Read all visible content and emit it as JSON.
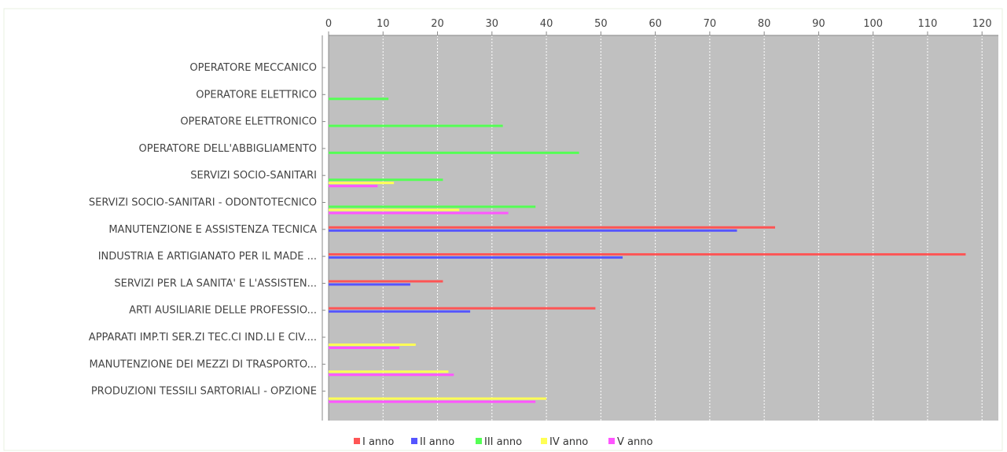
{
  "chart_data": {
    "type": "bar",
    "orientation": "horizontal",
    "title": "",
    "xlabel": "",
    "ylabel": "",
    "xlim": [
      0,
      123
    ],
    "x_ticks": [
      0,
      10,
      20,
      30,
      40,
      50,
      60,
      70,
      80,
      90,
      100,
      110,
      120
    ],
    "axis_position": "top",
    "grid": true,
    "legend_position": "bottom",
    "background_color": "#c0c0c0",
    "categories": [
      "OPERATORE MECCANICO",
      "OPERATORE ELETTRICO",
      "OPERATORE ELETTRONICO",
      "OPERATORE DELL'ABBIGLIAMENTO",
      "SERVIZI SOCIO-SANITARI",
      "SERVIZI SOCIO-SANITARI - ODONTOTECNICO",
      "MANUTENZIONE E ASSISTENZA TECNICA",
      "INDUSTRIA E ARTIGIANATO PER IL MADE ...",
      "SERVIZI PER LA SANITA' E L'ASSISTEN...",
      "ARTI AUSILIARIE DELLE PROFESSIO...",
      "APPARATI IMP.TI SER.ZI TEC.CI IND.LI E CIV....",
      "MANUTENZIONE DEI MEZZI DI TRASPORTO...",
      "PRODUZIONI TESSILI SARTORIALI - OPZIONE"
    ],
    "series": [
      {
        "name": "I anno",
        "color": "#ff5555",
        "values": [
          0,
          0,
          0,
          0,
          0,
          0,
          82,
          117,
          21,
          49,
          0,
          0,
          0
        ]
      },
      {
        "name": "II anno",
        "color": "#5555ff",
        "values": [
          0,
          0,
          0,
          0,
          0,
          0,
          75,
          54,
          15,
          26,
          0,
          0,
          0
        ]
      },
      {
        "name": "III anno",
        "color": "#55ff55",
        "values": [
          0,
          11,
          32,
          46,
          21,
          38,
          0,
          0,
          0,
          0,
          0,
          0,
          0
        ]
      },
      {
        "name": "IV anno",
        "color": "#ffff55",
        "values": [
          0,
          0,
          0,
          0,
          12,
          24,
          0,
          0,
          0,
          0,
          16,
          22,
          40
        ]
      },
      {
        "name": "V anno",
        "color": "#ff55ff",
        "values": [
          0,
          0,
          0,
          0,
          9,
          33,
          0,
          0,
          0,
          0,
          13,
          23,
          38
        ]
      }
    ]
  }
}
